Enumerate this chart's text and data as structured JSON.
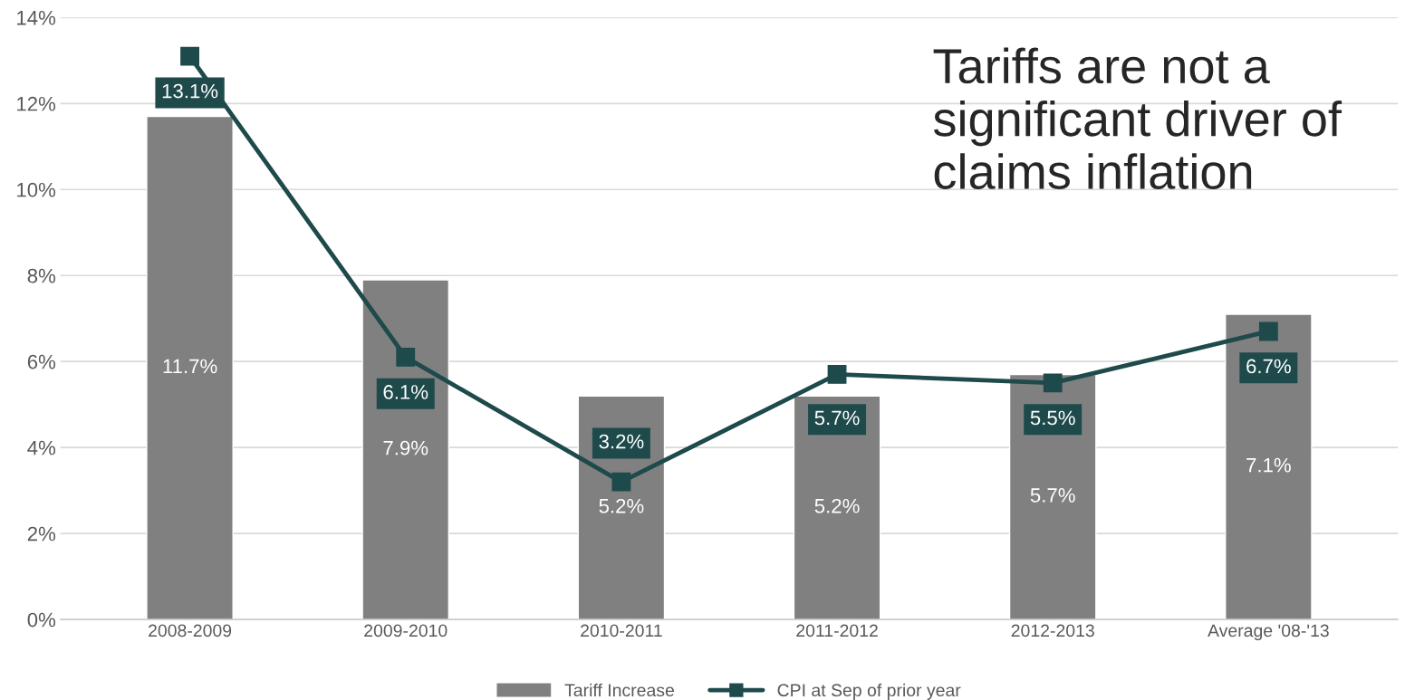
{
  "chart_data": {
    "type": "bar",
    "categories": [
      "2008-2009",
      "2009-2010",
      "2010-2011",
      "2011-2012",
      "2012-2013",
      "Average '08-'13"
    ],
    "series": [
      {
        "name": "Tariff Increase",
        "color": "#808080",
        "values": [
          11.7,
          7.9,
          5.2,
          5.2,
          5.7,
          7.1
        ],
        "value_labels": [
          "11.7%",
          "7.9%",
          "5.2%",
          "5.2%",
          "5.7%",
          "7.1%"
        ]
      },
      {
        "name": "CPI at Sep of prior year",
        "type": "line",
        "color": "#1e4a4b",
        "marker": "square",
        "values": [
          13.1,
          6.1,
          3.2,
          5.7,
          5.5,
          6.7
        ],
        "value_labels": [
          "13.1%",
          "6.1%",
          "3.2%",
          "5.7%",
          "5.5%",
          "6.7%"
        ]
      }
    ],
    "ylim": [
      0,
      14
    ],
    "yticks": [
      {
        "value": 0,
        "label": "0%"
      },
      {
        "value": 2,
        "label": "2%"
      },
      {
        "value": 4,
        "label": "4%"
      },
      {
        "value": 6,
        "label": "6%"
      },
      {
        "value": 8,
        "label": "8%"
      },
      {
        "value": 10,
        "label": "10%"
      },
      {
        "value": 12,
        "label": "12%"
      },
      {
        "value": 14,
        "label": "14%"
      }
    ],
    "grid": "y",
    "legend": "bottom",
    "annotations": [
      "Tariffs are not a significant driver of claims inflation"
    ]
  }
}
